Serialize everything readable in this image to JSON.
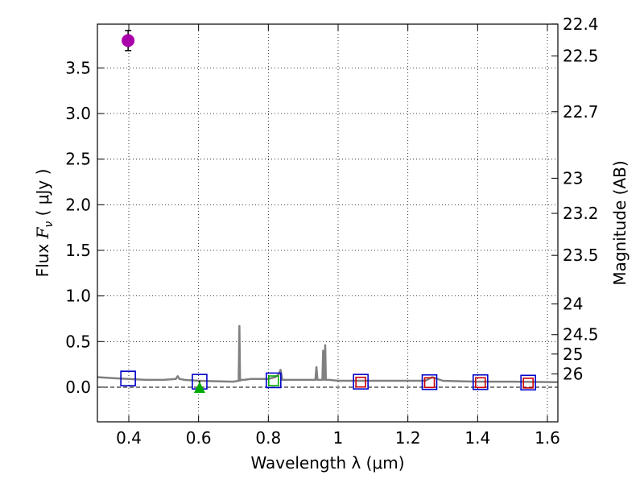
{
  "chart_data": {
    "type": "scatter",
    "xlabel": "Wavelength  λ (μm)",
    "ylabel_parts": [
      "Flux  ",
      "F",
      "ν",
      "  ( μJy )"
    ],
    "y2label": "Magnitude (AB)",
    "xlim": [
      0.31,
      1.63
    ],
    "ylim": [
      -0.38,
      3.98
    ],
    "grid": true,
    "x_ticks": [
      0.4,
      0.6,
      0.8,
      1.0,
      1.2,
      1.4,
      1.6
    ],
    "x_tick_labels": [
      "0.4",
      "0.6",
      "0.8",
      "1",
      "1.2",
      "1.4",
      "1.6"
    ],
    "y_ticks": [
      0.0,
      0.5,
      1.0,
      1.5,
      2.0,
      2.5,
      3.0,
      3.5
    ],
    "y_tick_labels": [
      "0.0",
      "0.5",
      "1.0",
      "1.5",
      "2.0",
      "2.5",
      "3.0",
      "3.5"
    ],
    "mag_ticks": [
      22.4,
      22.5,
      22.7,
      23,
      23.2,
      23.5,
      24,
      24.5,
      25,
      26
    ],
    "mag_tick_labels": [
      "22.4",
      "22.5",
      "22.7",
      "23",
      "23.2",
      "23.5",
      "24",
      "24.5",
      "25",
      "26"
    ],
    "colors": {
      "sed": "#808080",
      "detection": "#aa00aa",
      "model_box": "#0000cc",
      "green_box": "#00aa00",
      "red_box": "#cc0000",
      "triangle": "#00aa00"
    },
    "sed_model": {
      "x": [
        0.31,
        0.35,
        0.4,
        0.45,
        0.5,
        0.535,
        0.54,
        0.545,
        0.56,
        0.6,
        0.65,
        0.7,
        0.715,
        0.717,
        0.719,
        0.721,
        0.73,
        0.75,
        0.78,
        0.8,
        0.82,
        0.83,
        0.835,
        0.84,
        0.86,
        0.9,
        0.935,
        0.938,
        0.941,
        0.945,
        0.955,
        0.957,
        0.96,
        0.963,
        0.965,
        0.967,
        0.97,
        0.975,
        1.0,
        1.05,
        1.1,
        1.2,
        1.25,
        1.27,
        1.3,
        1.35,
        1.4,
        1.5,
        1.63
      ],
      "y": [
        0.11,
        0.1,
        0.09,
        0.08,
        0.08,
        0.09,
        0.12,
        0.09,
        0.08,
        0.07,
        0.065,
        0.06,
        0.07,
        0.67,
        0.07,
        0.08,
        0.08,
        0.09,
        0.09,
        0.09,
        0.11,
        0.14,
        0.19,
        0.08,
        0.08,
        0.08,
        0.08,
        0.22,
        0.08,
        0.08,
        0.08,
        0.4,
        0.08,
        0.46,
        0.08,
        0.08,
        0.08,
        0.08,
        0.07,
        0.07,
        0.07,
        0.07,
        0.07,
        0.11,
        0.07,
        0.065,
        0.06,
        0.06,
        0.055
      ]
    },
    "detection": {
      "x": 0.398,
      "y": 3.8,
      "yerr": 0.11
    },
    "model_boxes": [
      {
        "x": 0.398,
        "y": 0.095
      },
      {
        "x": 0.603,
        "y": 0.06
      },
      {
        "x": 0.815,
        "y": 0.075
      },
      {
        "x": 1.065,
        "y": 0.06
      },
      {
        "x": 1.262,
        "y": 0.055
      },
      {
        "x": 1.408,
        "y": 0.055
      },
      {
        "x": 1.545,
        "y": 0.05
      }
    ],
    "green_boxes": [
      {
        "x": 0.815,
        "y": 0.07
      }
    ],
    "red_boxes": [
      {
        "x": 1.065,
        "y": 0.055
      },
      {
        "x": 1.262,
        "y": 0.05
      },
      {
        "x": 1.408,
        "y": 0.05
      },
      {
        "x": 1.545,
        "y": 0.045
      }
    ],
    "upper_limits": [
      {
        "x": 0.603,
        "y": 0.0
      }
    ]
  }
}
